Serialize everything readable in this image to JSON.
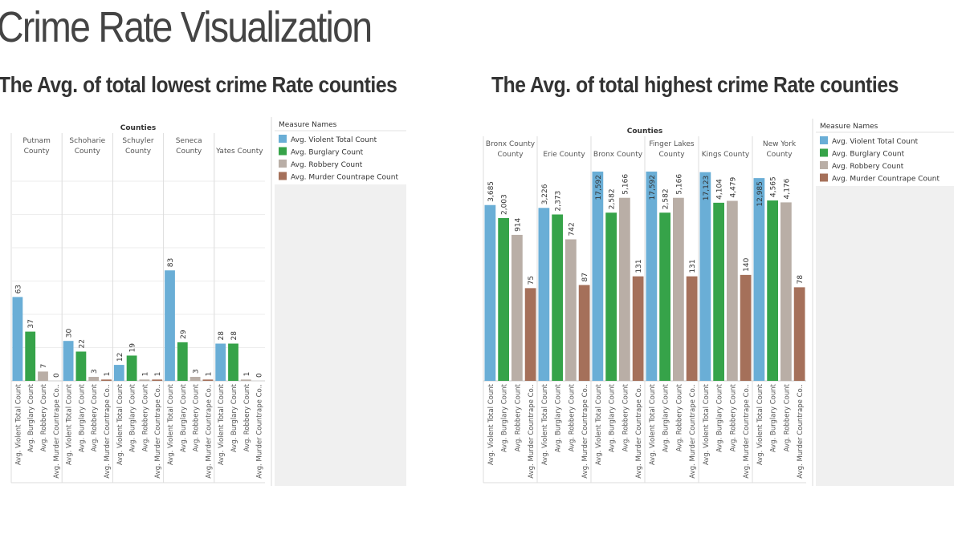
{
  "page": {
    "title": "Crime Rate Visualization"
  },
  "colors": {
    "violent": "#6aaed6",
    "burglary": "#36a349",
    "robbery": "#b9aea6",
    "murder": "#a5705a",
    "gridline": "#eeeeee",
    "panel": "#f0f0f0",
    "text": "#333333",
    "muted": "#555555"
  },
  "chart_data": [
    {
      "type": "bar",
      "title": "The Avg. of total lowest crime Rate counties",
      "group_header": "Counties",
      "legend_title": "Measure Names",
      "legend_position": "right",
      "measures": [
        "Avg. Violent Total Count",
        "Avg. Burglary Count",
        "Avg. Robbery Count",
        "Avg. Murder Countrape Count"
      ],
      "measure_tick_labels": [
        "Avg. Violent Total Count",
        "Avg. Burglary Count",
        "Avg. Robbery Count",
        "Avg. Murder Countrape Co.."
      ],
      "series_colors": [
        "#6aaed6",
        "#36a349",
        "#b9aea6",
        "#a5705a"
      ],
      "categories": [
        {
          "name_lines": [
            "Putnam",
            "County"
          ],
          "values": [
            63,
            37,
            7,
            0
          ]
        },
        {
          "name_lines": [
            "Schoharie",
            "County"
          ],
          "values": [
            30,
            22,
            3,
            1
          ]
        },
        {
          "name_lines": [
            "Schuyler",
            "County"
          ],
          "values": [
            12,
            19,
            1,
            1
          ]
        },
        {
          "name_lines": [
            "Seneca",
            "County"
          ],
          "values": [
            83,
            29,
            3,
            1
          ]
        },
        {
          "name_lines": [
            "Yates County"
          ],
          "values": [
            28,
            28,
            1,
            0
          ]
        }
      ],
      "ylim": [
        0,
        150
      ],
      "grid": true
    },
    {
      "type": "bar",
      "title": "The Avg. of total highest crime Rate counties",
      "group_header": "Counties",
      "legend_title": "Measure Names",
      "legend_position": "right",
      "measures": [
        "Avg. Violent Total Count",
        "Avg. Burglary Count",
        "Avg. Robbery Count",
        "Avg. Murder Countrape Count"
      ],
      "measure_tick_labels": [
        "Avg. Violent Total Count",
        "Avg. Burglary Count",
        "Avg. Robbery Count",
        "Avg. Murder Countrape Co.."
      ],
      "series_colors": [
        "#6aaed6",
        "#36a349",
        "#b9aea6",
        "#a5705a"
      ],
      "categories": [
        {
          "name_lines": [
            "Bronx County",
            "County"
          ],
          "values": [
            3685,
            2003,
            914,
            75
          ]
        },
        {
          "name_lines": [
            "Erie County"
          ],
          "values": [
            3226,
            2373,
            742,
            87
          ]
        },
        {
          "name_lines": [
            "Bronx County"
          ],
          "values": [
            17592,
            2582,
            5166,
            131
          ]
        },
        {
          "name_lines": [
            "Finger Lakes",
            "County"
          ],
          "values": [
            17592,
            2582,
            5166,
            131
          ]
        },
        {
          "name_lines": [
            "Kings County"
          ],
          "values": [
            17123,
            4104,
            4479,
            140
          ]
        },
        {
          "name_lines": [
            "New York",
            "County"
          ],
          "values": [
            12985,
            4565,
            4176,
            78
          ]
        }
      ],
      "grid": false
    }
  ]
}
